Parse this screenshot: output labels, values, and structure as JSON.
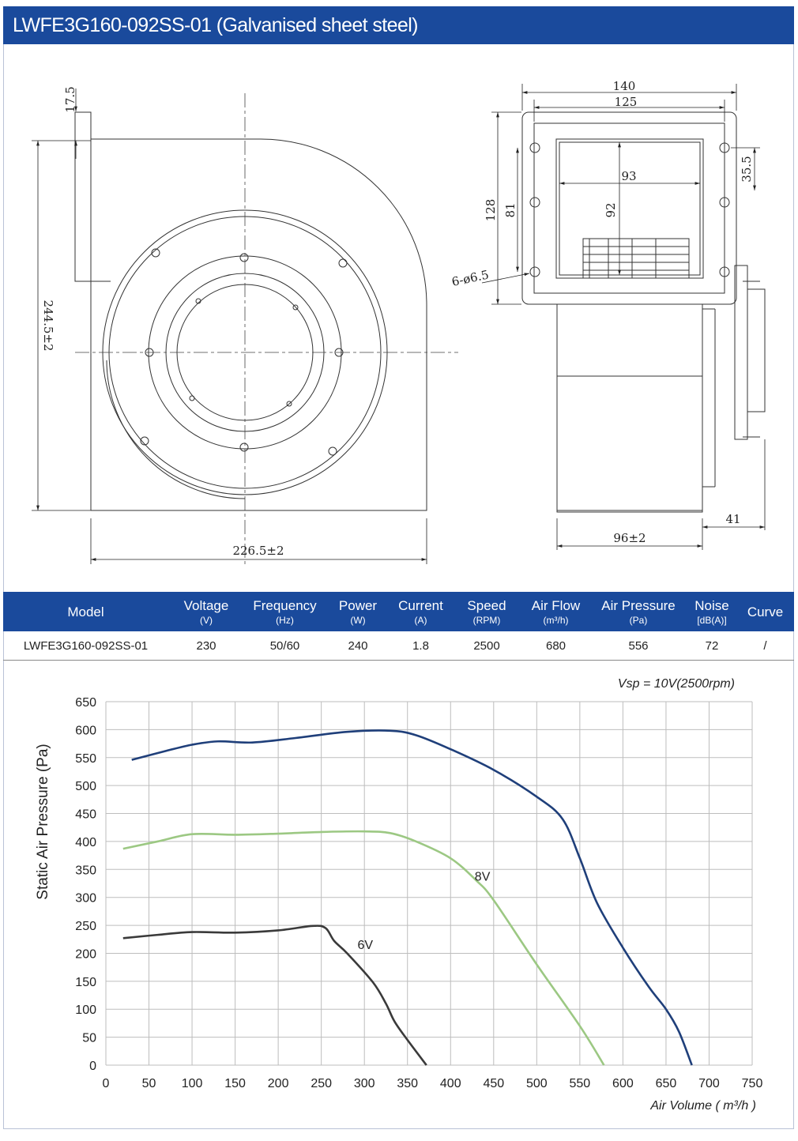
{
  "header": {
    "title": "LWFE3G160-092SS-01 (Galvanised sheet steel)"
  },
  "drawing": {
    "dims": {
      "d17_5": "17.5",
      "d244": "244.5±2",
      "d226": "226.5±2",
      "d140": "140",
      "d125": "125",
      "d93": "93",
      "d35_5": "35.5",
      "d128": "128",
      "d81": "81",
      "d92": "92",
      "holes": "6-ø6.5",
      "d41": "41",
      "d96": "96±2"
    }
  },
  "specs": {
    "headers": [
      {
        "label": "Model",
        "unit": ""
      },
      {
        "label": "Voltage",
        "unit": "(V)"
      },
      {
        "label": "Frequency",
        "unit": "(Hz)"
      },
      {
        "label": "Power",
        "unit": "(W)"
      },
      {
        "label": "Current",
        "unit": "(A)"
      },
      {
        "label": "Speed",
        "unit": "(RPM)"
      },
      {
        "label": "Air Flow",
        "unit": "(m³/h)"
      },
      {
        "label": "Air Pressure",
        "unit": "(Pa)"
      },
      {
        "label": "Noise",
        "unit": "[dB(A)]"
      },
      {
        "label": "Curve",
        "unit": ""
      }
    ],
    "row": [
      "LWFE3G160-092SS-01",
      "230",
      "50/60",
      "240",
      "1.8",
      "2500",
      "680",
      "556",
      "72",
      "/"
    ]
  },
  "chart_data": {
    "type": "line",
    "title": "Vsp = 10V(2500rpm)",
    "xlabel": "Air Volume ( m³/h )",
    "ylabel": "Static Air Pressure  (Pa)",
    "xlim": [
      0,
      750
    ],
    "ylim": [
      0,
      650
    ],
    "xticks": [
      "0",
      "50",
      "100",
      "150",
      "200",
      "250",
      "300",
      "350",
      "400",
      "450",
      "500",
      "550",
      "600",
      "650",
      "700",
      "750"
    ],
    "yticks": [
      "0",
      "50",
      "100",
      "150",
      "200",
      "250",
      "300",
      "350",
      "400",
      "450",
      "500",
      "550",
      "600",
      "650"
    ],
    "grid": true,
    "series": [
      {
        "name": "",
        "color": "#1f3f7a",
        "x": [
          30,
          70,
          100,
          130,
          170,
          220,
          280,
          330,
          360,
          400,
          450,
          500,
          530,
          550,
          570,
          600,
          630,
          650,
          665,
          680
        ],
        "y": [
          546,
          562,
          573,
          579,
          577,
          585,
          596,
          598,
          590,
          565,
          528,
          480,
          440,
          370,
          290,
          210,
          140,
          100,
          60,
          0
        ]
      },
      {
        "name": "8V",
        "color": "#9cc883",
        "x": [
          20,
          60,
          100,
          150,
          200,
          250,
          300,
          330,
          360,
          400,
          430,
          450,
          500,
          550,
          578
        ],
        "y": [
          387,
          400,
          413,
          412,
          414,
          417,
          418,
          415,
          400,
          370,
          330,
          295,
          180,
          70,
          0
        ]
      },
      {
        "name": "6V",
        "color": "#3a3a3a",
        "x": [
          20,
          60,
          100,
          150,
          200,
          240,
          255,
          265,
          280,
          310,
          325,
          335,
          350,
          372
        ],
        "y": [
          227,
          233,
          238,
          237,
          241,
          249,
          245,
          222,
          200,
          148,
          110,
          78,
          45,
          0
        ]
      }
    ],
    "labels": [
      {
        "text": "8V",
        "x": 428,
        "y": 330
      },
      {
        "text": "6V",
        "x": 292,
        "y": 208
      }
    ]
  }
}
